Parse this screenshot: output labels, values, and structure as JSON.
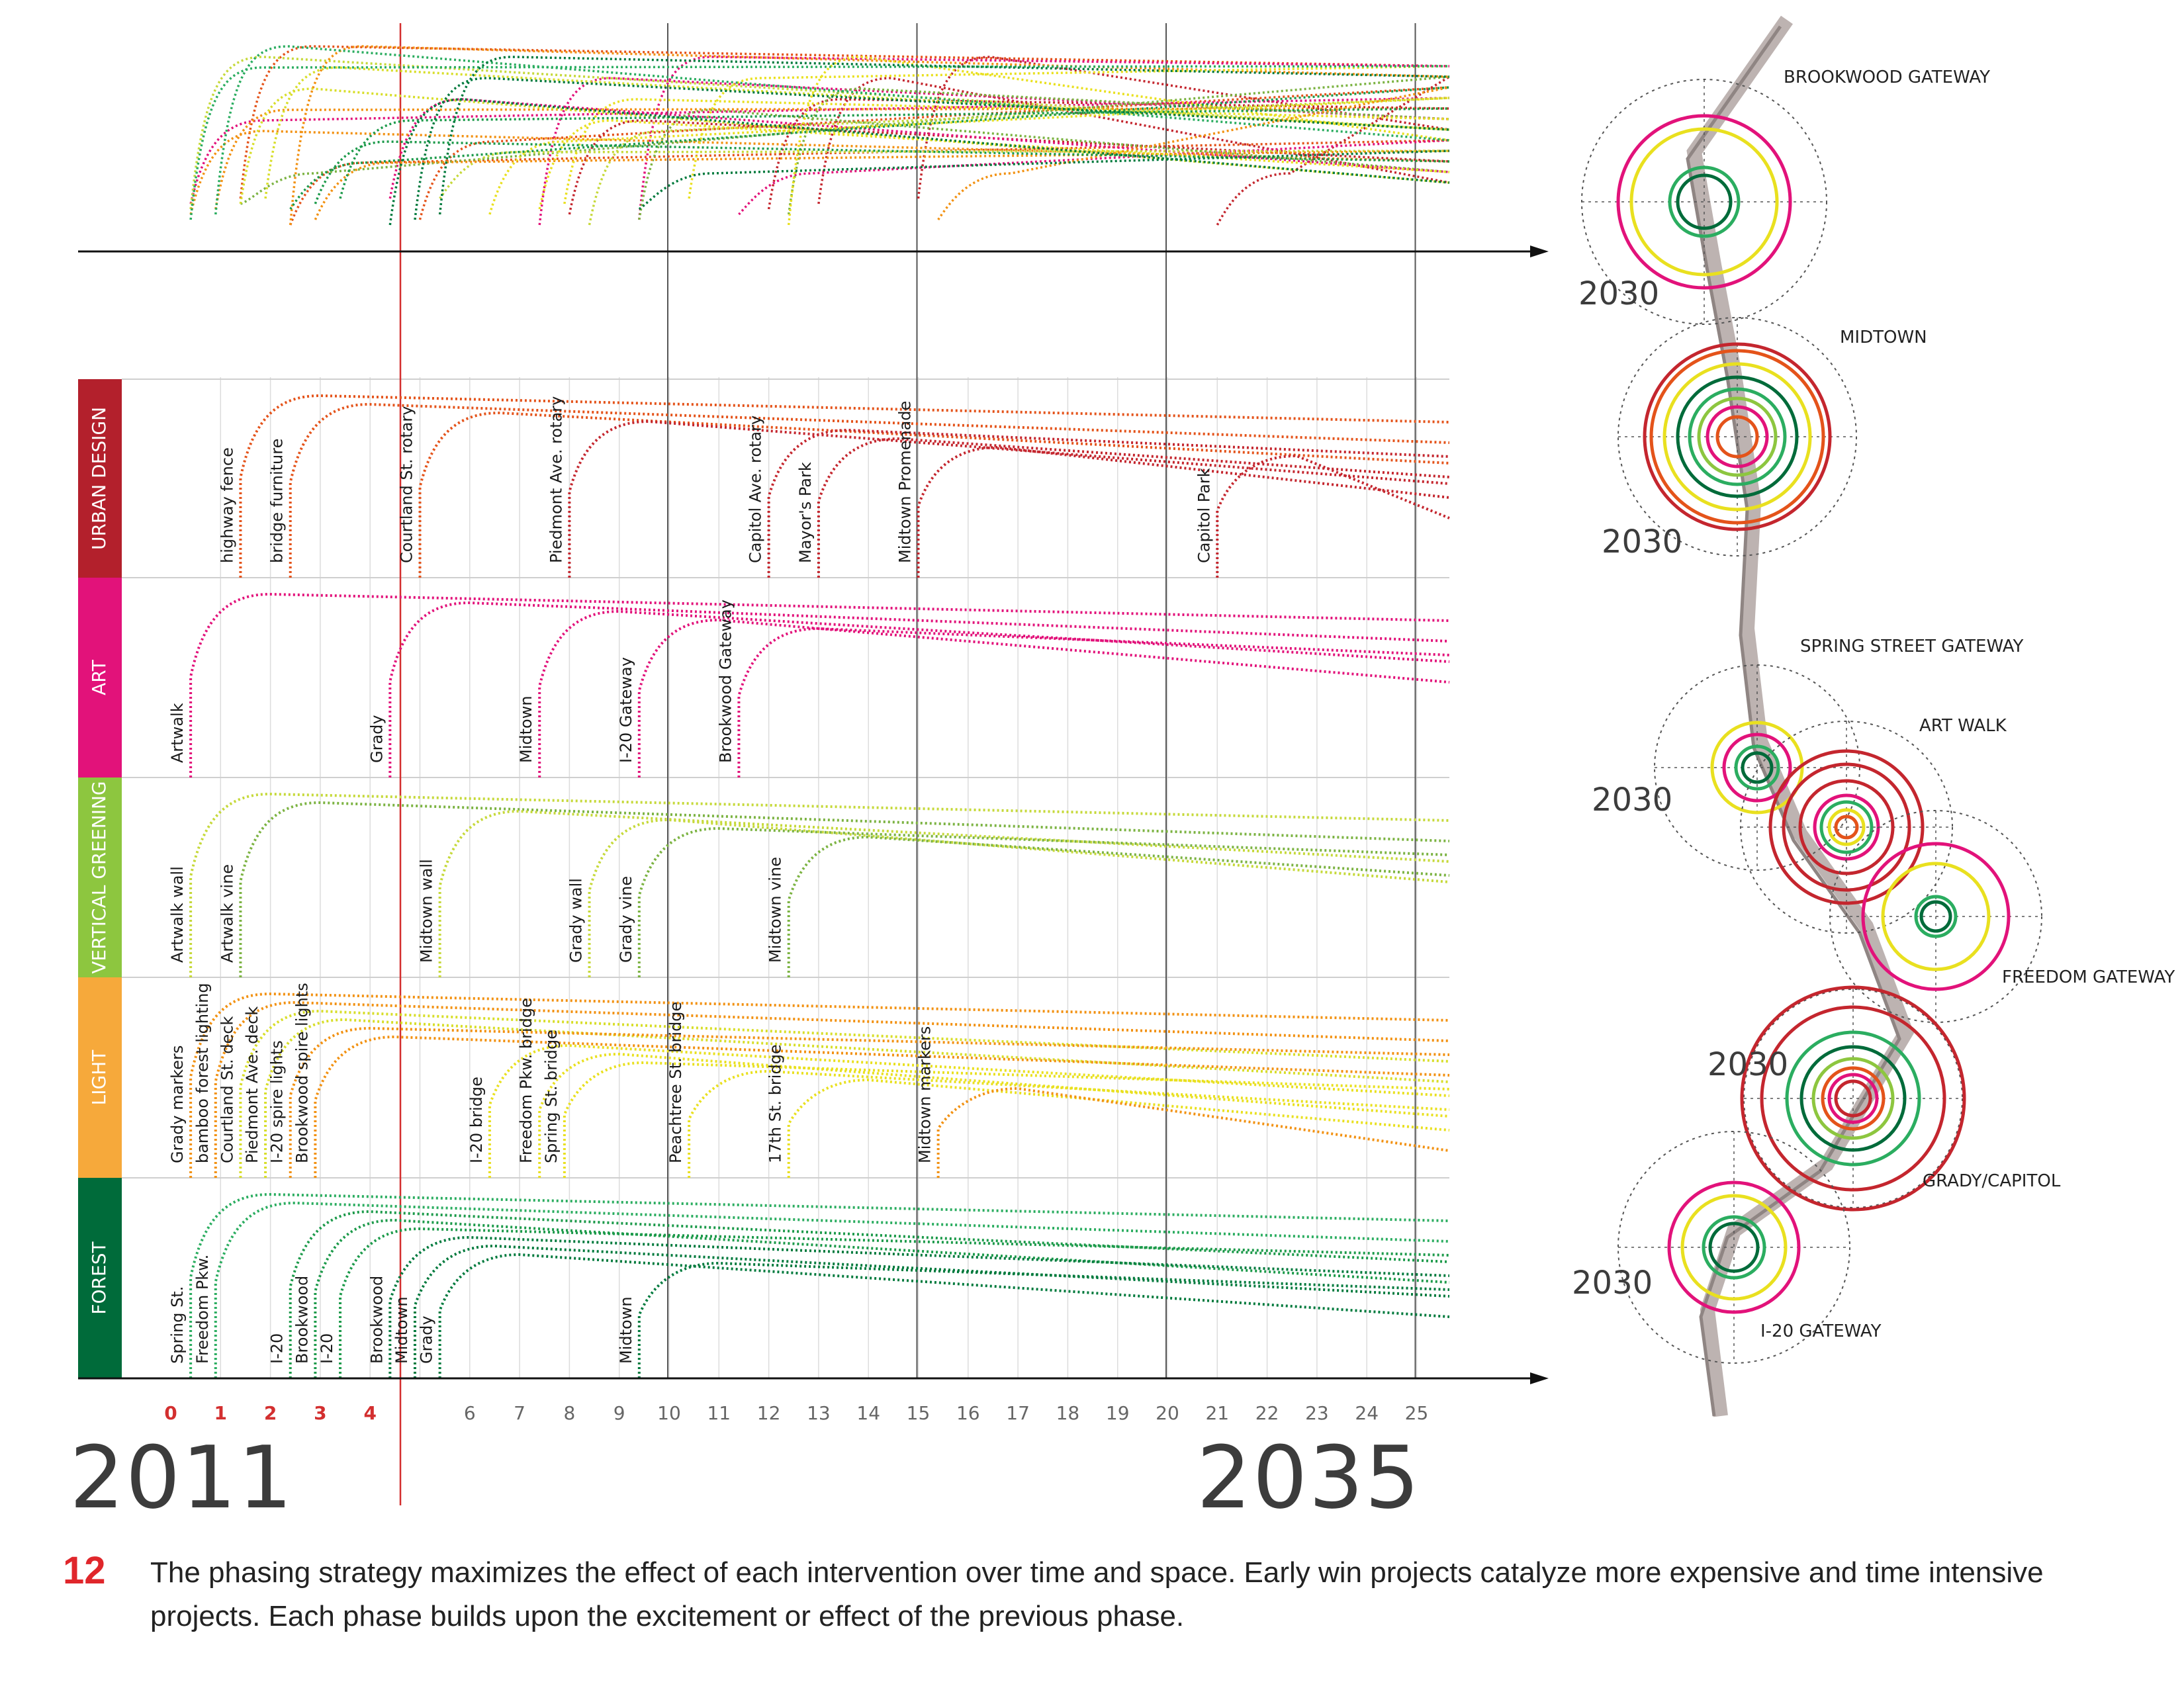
{
  "years": {
    "start": "2011",
    "end": "2035"
  },
  "axis_ticks": [
    "0",
    "1",
    "2",
    "3",
    "4",
    "6",
    "7",
    "8",
    "9",
    "10",
    "11",
    "12",
    "13",
    "14",
    "15",
    "16",
    "17",
    "18",
    "19",
    "20",
    "21",
    "22",
    "23",
    "24",
    "25"
  ],
  "categories": [
    {
      "name": "URBAN DESIGN",
      "color": "#b3202c",
      "projects": [
        {
          "label": "highway fence",
          "year": 1.4,
          "color": "#e4531a"
        },
        {
          "label": "bridge furniture",
          "year": 2.4,
          "color": "#e4531a"
        },
        {
          "label": "Courtland St. rotary",
          "year": 5.0,
          "color": "#e4531a"
        },
        {
          "label": "Piedmont Ave. rotary",
          "year": 8.0,
          "color": "#c4262e"
        },
        {
          "label": "Capitol Ave. rotary",
          "year": 12.0,
          "color": "#c4262e"
        },
        {
          "label": "Mayor's Park",
          "year": 13.0,
          "color": "#c4262e"
        },
        {
          "label": "Midtown Promenade",
          "year": 15.0,
          "color": "#c4262e"
        },
        {
          "label": "Capitol Park",
          "year": 21.0,
          "color": "#c4262e"
        }
      ]
    },
    {
      "name": "ART",
      "color": "#e2127a",
      "projects": [
        {
          "label": "Artwalk",
          "year": 0.4,
          "color": "#e2127a"
        },
        {
          "label": "Grady",
          "year": 4.4,
          "color": "#e2127a"
        },
        {
          "label": "Midtown",
          "year": 7.4,
          "color": "#e2127a"
        },
        {
          "label": "I-20 Gateway",
          "year": 9.4,
          "color": "#e2127a"
        },
        {
          "label": "Brookwood Gateway",
          "year": 11.4,
          "color": "#e2127a"
        }
      ]
    },
    {
      "name": "VERTICAL GREENING",
      "color": "#8dc63f",
      "projects": [
        {
          "label": "Artwalk wall",
          "year": 0.4,
          "color": "#c6d93a"
        },
        {
          "label": "Artwalk vine",
          "year": 1.4,
          "color": "#7cb342"
        },
        {
          "label": "Midtown wall",
          "year": 5.4,
          "color": "#c6d93a"
        },
        {
          "label": "Grady wall",
          "year": 8.4,
          "color": "#c6d93a"
        },
        {
          "label": "Grady vine",
          "year": 9.4,
          "color": "#7cb342"
        },
        {
          "label": "Midtown vine",
          "year": 12.4,
          "color": "#7cb342"
        }
      ]
    },
    {
      "name": "LIGHT",
      "color": "#f6a93b",
      "projects": [
        {
          "label": "Grady markers",
          "year": 0.4,
          "color": "#f29111"
        },
        {
          "label": "bamboo forest lighting",
          "year": 0.9,
          "color": "#f29111"
        },
        {
          "label": "Courtland St. deck",
          "year": 1.4,
          "color": "#d8de2a"
        },
        {
          "label": "Piedmont Ave. deck",
          "year": 1.9,
          "color": "#d8de2a"
        },
        {
          "label": "I-20 spire lights",
          "year": 2.4,
          "color": "#f29111"
        },
        {
          "label": "Brookwood spire lights",
          "year": 2.9,
          "color": "#f29111"
        },
        {
          "label": "I-20 bridge",
          "year": 6.4,
          "color": "#e9e01f"
        },
        {
          "label": "Freedom Pkw. bridge",
          "year": 7.4,
          "color": "#e9e01f"
        },
        {
          "label": "Spring St. bridge",
          "year": 7.9,
          "color": "#e9e01f"
        },
        {
          "label": "Peachtree St. bridge",
          "year": 10.4,
          "color": "#e9e01f"
        },
        {
          "label": "17th St. bridge",
          "year": 12.4,
          "color": "#e9e01f"
        },
        {
          "label": "Midtown markers",
          "year": 15.4,
          "color": "#f29111"
        }
      ]
    },
    {
      "name": "FOREST",
      "color": "#006b3a",
      "projects": [
        {
          "label": "Spring St.",
          "year": 0.4,
          "color": "#2bad60"
        },
        {
          "label": "Freedom Pkw.",
          "year": 0.9,
          "color": "#2bad60"
        },
        {
          "label": "I-20",
          "year": 2.4,
          "color": "#1c9a4a"
        },
        {
          "label": "Brookwood",
          "year": 2.9,
          "color": "#1c9a4a"
        },
        {
          "label": "I-20",
          "year": 3.4,
          "color": "#1c9a4a"
        },
        {
          "label": "Brookwood",
          "year": 4.4,
          "color": "#007a3d"
        },
        {
          "label": "Midtown",
          "year": 4.9,
          "color": "#007a3d"
        },
        {
          "label": "Grady",
          "year": 5.4,
          "color": "#007a3d"
        },
        {
          "label": "Midtown",
          "year": 9.4,
          "color": "#007a3d"
        }
      ]
    }
  ],
  "map_labels": {
    "brookwood": "BROOKWOOD GATEWAY",
    "midtown": "MIDTOWN",
    "spring": "SPRING STREET GATEWAY",
    "artwalk": "ART WALK",
    "freedom": "FREEDOM GATEWAY",
    "grady": "GRADY/CAPITOL",
    "i20": "I-20 GATEWAY"
  },
  "year_2030": "2030",
  "caption": {
    "number": "12",
    "text": "The phasing strategy maximizes the effect of each intervention over time and space. Early win projects catalyze more expensive and time intensive projects. Each phase builds upon the excitement or effect of the previous phase."
  }
}
